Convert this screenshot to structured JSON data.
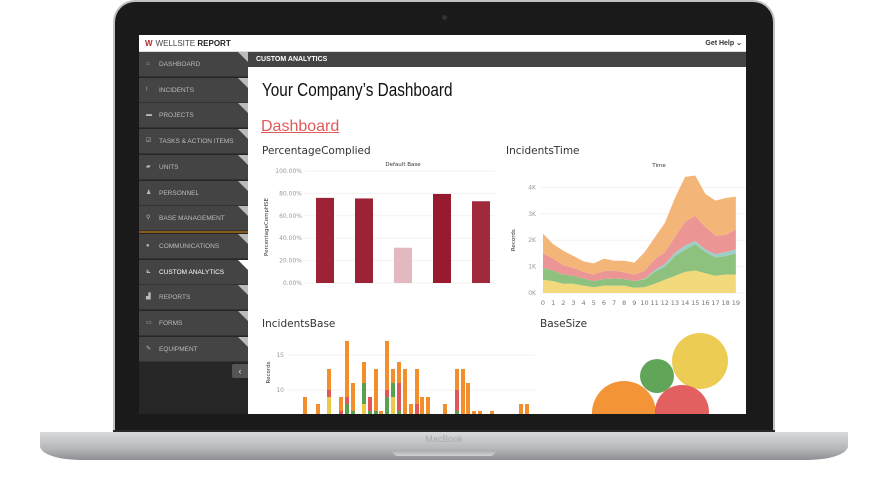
{
  "device": {
    "label": "MacBook"
  },
  "app": {
    "logo_light": "WELLSITE",
    "logo_bold": "REPORT",
    "help": "Get Help"
  },
  "sidebar": {
    "items": [
      {
        "label": "Dashboard",
        "icon": "home"
      },
      {
        "label": "Incidents",
        "icon": "!"
      },
      {
        "label": "Projects",
        "icon": "folder"
      },
      {
        "label": "Tasks & Action Items",
        "icon": "check"
      },
      {
        "label": "Units",
        "icon": "truck"
      },
      {
        "label": "Personnel",
        "icon": "person"
      },
      {
        "label": "Base Management",
        "icon": "pin"
      },
      {
        "label": "Communications",
        "icon": "chat"
      },
      {
        "label": "Custom Analytics",
        "icon": "chart",
        "active": true
      },
      {
        "label": "Reports",
        "icon": "bars"
      },
      {
        "label": "Forms",
        "icon": "form"
      },
      {
        "label": "Equipment",
        "icon": "wrench"
      }
    ]
  },
  "breadcrumb": "CUSTOM ANALYTICS",
  "page": {
    "title": "Your Company’s Dashboard",
    "link": "Dashboard"
  },
  "chart_data": [
    {
      "id": "pc",
      "type": "bar",
      "title": "PercentageComplied",
      "subtitle": "Default Base",
      "ylabel": "PercentageCompHSE",
      "ylim": [
        0,
        100
      ],
      "yticks": [
        "0.00%",
        "20.00%",
        "40.00%",
        "60.00%",
        "80.00%",
        "100.00%"
      ],
      "values": [
        76,
        75.5,
        31.5,
        79.5,
        73
      ],
      "colors": [
        "#9b2335",
        "#9b2335",
        "#e3b8c0",
        "#971a2f",
        "#a02a3c"
      ]
    },
    {
      "id": "it",
      "type": "area",
      "title": "IncidentsTime",
      "subtitle": "Time",
      "ylabel": "Records",
      "ylim": [
        0,
        4500
      ],
      "yticks": [
        "0K",
        "1K",
        "2K",
        "3K",
        "4K"
      ],
      "x": [
        0,
        1,
        2,
        3,
        4,
        5,
        6,
        7,
        8,
        9,
        10,
        11,
        12,
        13,
        14,
        15,
        16,
        17,
        18,
        19
      ],
      "series": [
        {
          "color": "#f2d97c",
          "values": [
            500,
            450,
            350,
            350,
            280,
            220,
            280,
            280,
            280,
            200,
            220,
            350,
            500,
            650,
            800,
            850,
            750,
            650,
            700,
            700
          ]
        },
        {
          "color": "#8fc17e",
          "values": [
            450,
            400,
            350,
            300,
            270,
            230,
            250,
            270,
            250,
            250,
            300,
            450,
            500,
            750,
            850,
            1000,
            800,
            700,
            700,
            800
          ]
        },
        {
          "color": "#9ccfc9",
          "values": [
            0,
            0,
            0,
            0,
            0,
            0,
            0,
            0,
            0,
            0,
            20,
            70,
            100,
            120,
            150,
            120,
            100,
            120,
            150,
            150
          ]
        },
        {
          "color": "#eb9595",
          "values": [
            550,
            450,
            350,
            300,
            250,
            250,
            300,
            300,
            250,
            250,
            300,
            400,
            450,
            600,
            900,
            950,
            850,
            700,
            650,
            750
          ]
        },
        {
          "color": "#f4b678",
          "values": [
            750,
            550,
            550,
            450,
            400,
            420,
            470,
            370,
            440,
            450,
            700,
            830,
            1100,
            1480,
            1700,
            1530,
            1250,
            1330,
            1400,
            1250
          ]
        }
      ]
    },
    {
      "id": "ib",
      "type": "bar",
      "stacked": true,
      "title": "IncidentsBase",
      "ylabel": "Records",
      "yticks": [
        "10",
        "15"
      ],
      "series": [
        {
          "color": "#ecc94b",
          "values": [
            0,
            0,
            9,
            0,
            0,
            0,
            8,
            0,
            0,
            0,
            0,
            9,
            0,
            0,
            0,
            0,
            0,
            0,
            0,
            0,
            0,
            0,
            0,
            0,
            0,
            0,
            0
          ]
        },
        {
          "color": "#59a14f",
          "values": [
            0,
            0,
            0,
            0,
            8,
            7,
            3,
            7,
            7,
            0,
            9,
            2,
            7,
            0,
            0,
            0,
            0,
            0,
            0,
            7,
            0,
            0,
            0,
            0,
            0,
            0,
            0
          ]
        },
        {
          "color": "#e15759",
          "values": [
            0,
            0,
            1,
            7,
            1,
            0,
            0,
            2,
            0,
            0,
            1,
            0,
            4,
            0,
            0,
            8,
            0,
            0,
            0,
            3,
            0,
            0,
            0,
            0,
            0,
            0,
            0
          ]
        },
        {
          "color": "#f28e2b",
          "values": [
            9,
            8,
            3,
            2,
            8,
            4,
            3,
            0,
            6,
            7,
            7,
            2,
            3,
            13,
            8,
            5,
            9,
            9,
            8,
            3,
            13,
            11,
            7,
            7,
            7,
            8,
            8
          ]
        }
      ]
    },
    {
      "id": "bs",
      "type": "bubble",
      "title": "BaseSize",
      "bubbles": [
        {
          "color": "#ecc94b",
          "size": 28
        },
        {
          "color": "#59a14f",
          "size": 17
        },
        {
          "color": "#f28e2b",
          "size": 32
        },
        {
          "color": "#e15759",
          "size": 27
        }
      ]
    }
  ]
}
